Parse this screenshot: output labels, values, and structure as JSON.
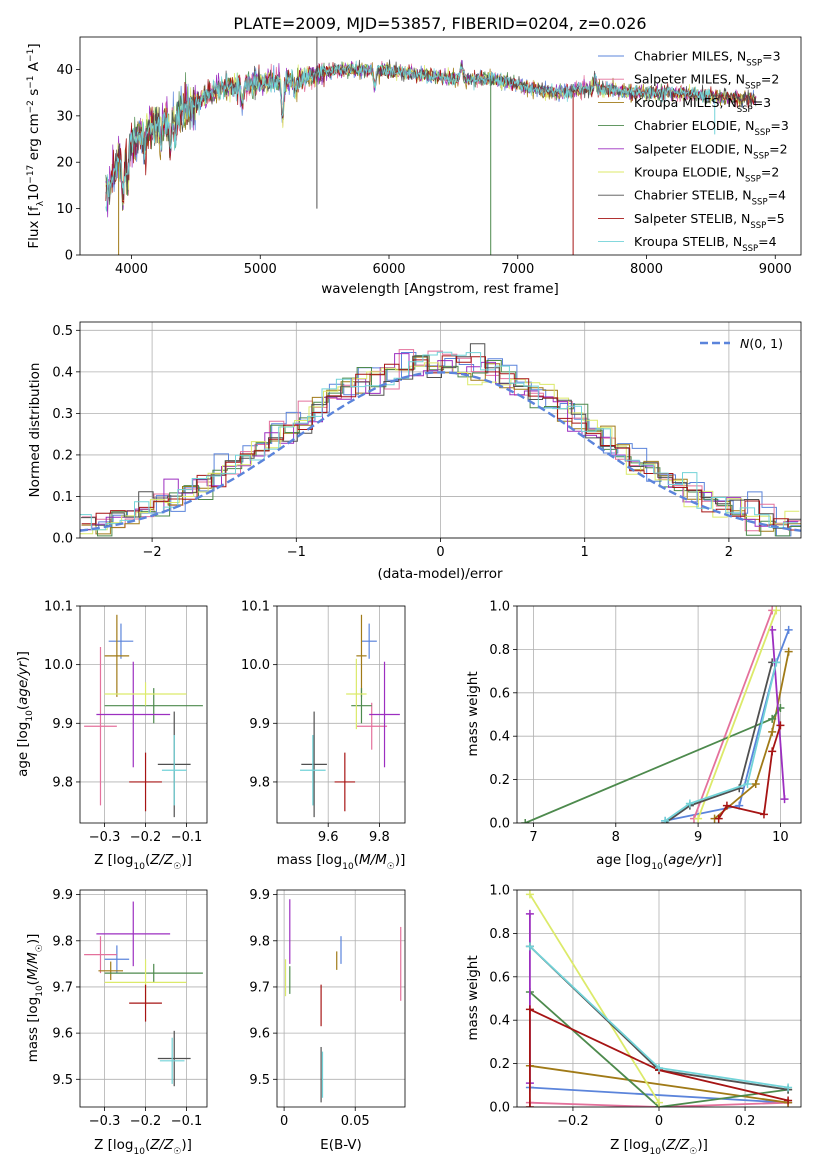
{
  "title": "PLATE=2009, MJD=53857, FIBERID=0204, z=0.026",
  "colors": {
    "chabrier_miles": "#5b84db",
    "salpeter_miles": "#e4719c",
    "kroupa_miles": "#a07a17",
    "chabrier_elodie": "#4d8a4d",
    "salpeter_elodie": "#9c2fc0",
    "kroupa_elodie": "#dcea6a",
    "chabrier_stelib": "#505050",
    "salpeter_stelib": "#a61414",
    "kroupa_stelib": "#72d3d8",
    "gauss": "#5b84db"
  },
  "chart_data": [
    {
      "type": "line",
      "panel": "spectrum",
      "xlabel": "wavelength [Angstrom, rest frame]",
      "ylabel": "Flux [f_λ10^-17 erg cm^-2 s^-1 A^-1]",
      "xlim": [
        3600,
        9200
      ],
      "ylim": [
        0,
        47
      ],
      "xticks": [
        4000,
        5000,
        6000,
        7000,
        8000,
        9000
      ],
      "yticks": [
        0,
        10,
        20,
        30,
        40
      ],
      "grid": false,
      "legend_position": "upper right",
      "legend": [
        "Chabrier MILES, NSSP=3",
        "Salpeter MILES, NSSP=2",
        "Kroupa MILES, NSSP=3",
        "Chabrier ELODIE, NSSP=3",
        "Salpeter ELODIE, NSSP=2",
        "Kroupa ELODIE, NSSP=2",
        "Chabrier STELIB, NSSP=4",
        "Salpeter STELIB, NSSP=5",
        "Kroupa STELIB, NSSP=4"
      ],
      "continuum": [
        [
          3800,
          13
        ],
        [
          3900,
          20
        ],
        [
          4000,
          24
        ],
        [
          4100,
          27
        ],
        [
          4300,
          29
        ],
        [
          4500,
          33
        ],
        [
          4700,
          36
        ],
        [
          5000,
          37
        ],
        [
          5300,
          38
        ],
        [
          5600,
          40
        ],
        [
          5900,
          40
        ],
        [
          6200,
          39
        ],
        [
          6500,
          38
        ],
        [
          6800,
          38
        ],
        [
          7100,
          36
        ],
        [
          7300,
          35
        ],
        [
          7600,
          36
        ],
        [
          7900,
          35
        ],
        [
          8200,
          35
        ],
        [
          8600,
          34
        ],
        [
          8900,
          33.5
        ]
      ],
      "spikes": [
        {
          "x": 3900,
          "y": 0,
          "series": 2
        },
        {
          "x": 5440,
          "y": 47,
          "series": 6
        },
        {
          "x": 5440,
          "y": 10,
          "series": 6
        },
        {
          "x": 6790,
          "y": 0,
          "series": 3
        },
        {
          "x": 7430,
          "y": 0,
          "series": 7
        },
        {
          "x": 8530,
          "y": 26,
          "series": 8
        }
      ]
    },
    {
      "type": "histogram",
      "panel": "residuals",
      "xlabel": "(data-model)/error",
      "ylabel": "Normed distribution",
      "xlim": [
        -2.5,
        2.5
      ],
      "ylim": [
        0,
        0.52
      ],
      "xticks": [
        -2,
        -1,
        0,
        1,
        2
      ],
      "yticks": [
        0,
        0.1,
        0.2,
        0.3,
        0.4,
        0.5
      ],
      "grid": true,
      "legend": [
        "N(0,1)"
      ],
      "legend_position": "upper right",
      "bin_width": 0.1
    },
    {
      "type": "scatter",
      "panel": "age_vs_Z",
      "xlabel": "Z [log10(Z/Z☉)]",
      "ylabel": "age  [log10(age/yr)]",
      "xlim": [
        -0.36,
        -0.05
      ],
      "ylim": [
        9.73,
        10.1
      ],
      "xticks": [
        -0.3,
        -0.2,
        -0.1
      ],
      "yticks": [
        9.8,
        9.9,
        10.0,
        10.1
      ],
      "grid": true,
      "points": [
        {
          "s": 0,
          "x": -0.26,
          "y": 10.04,
          "xe": 0.03,
          "ye": 0.03
        },
        {
          "s": 1,
          "x": -0.31,
          "y": 9.895,
          "xe": 0.04,
          "ye": 0.135
        },
        {
          "s": 2,
          "x": -0.27,
          "y": 10.015,
          "xe": 0.03,
          "ye": 0.07
        },
        {
          "s": 3,
          "x": -0.18,
          "y": 9.93,
          "xe": 0.12,
          "ye": 0.03
        },
        {
          "s": 4,
          "x": -0.23,
          "y": 9.915,
          "xe": 0.09,
          "ye": 0.09
        },
        {
          "s": 5,
          "x": -0.2,
          "y": 9.95,
          "xe": 0.1,
          "ye": 0.02
        },
        {
          "s": 6,
          "x": -0.13,
          "y": 9.83,
          "xe": 0.04,
          "ye": 0.09
        },
        {
          "s": 7,
          "x": -0.2,
          "y": 9.8,
          "xe": 0.04,
          "ye": 0.05
        },
        {
          "s": 8,
          "x": -0.13,
          "y": 9.82,
          "xe": 0.03,
          "ye": 0.06
        }
      ]
    },
    {
      "type": "scatter",
      "panel": "age_vs_mass",
      "xlabel": "mass [log10(M/M☉)]",
      "ylabel": "",
      "xlim": [
        9.4,
        9.9
      ],
      "ylim": [
        9.73,
        10.1
      ],
      "xticks": [
        9.6,
        9.8
      ],
      "yticks": [
        9.8,
        9.9,
        10.0,
        10.1
      ],
      "grid": true,
      "points": [
        {
          "s": 0,
          "x": 9.76,
          "y": 10.04,
          "xe": 0.03,
          "ye": 0.03
        },
        {
          "s": 1,
          "x": 9.77,
          "y": 9.895,
          "xe": 0.06,
          "ye": 0.04
        },
        {
          "s": 2,
          "x": 9.73,
          "y": 10.015,
          "xe": 0.02,
          "ye": 0.07
        },
        {
          "s": 3,
          "x": 9.73,
          "y": 9.93,
          "xe": 0.04,
          "ye": 0.03
        },
        {
          "s": 4,
          "x": 9.82,
          "y": 9.915,
          "xe": 0.06,
          "ye": 0.09
        },
        {
          "s": 5,
          "x": 9.71,
          "y": 9.95,
          "xe": 0.04,
          "ye": 0.06
        },
        {
          "s": 6,
          "x": 9.545,
          "y": 9.83,
          "xe": 0.05,
          "ye": 0.09
        },
        {
          "s": 7,
          "x": 9.665,
          "y": 9.8,
          "xe": 0.04,
          "ye": 0.05
        },
        {
          "s": 8,
          "x": 9.54,
          "y": 9.82,
          "xe": 0.05,
          "ye": 0.06
        }
      ]
    },
    {
      "type": "line",
      "panel": "massweight_vs_age",
      "xlabel": "age  [log10(age/yr)]",
      "ylabel": "mass weight",
      "xlim": [
        6.8,
        10.25
      ],
      "ylim": [
        0,
        1
      ],
      "xticks": [
        7,
        8,
        9,
        10
      ],
      "yticks": [
        0,
        0.2,
        0.4,
        0.6,
        0.8,
        1.0
      ],
      "grid": true,
      "series": [
        {
          "s": 0,
          "x": [
            8.6,
            9.5,
            9.95,
            10.1
          ],
          "y": [
            0.01,
            0.08,
            0.74,
            0.89
          ]
        },
        {
          "s": 1,
          "x": [
            8.95,
            9.9
          ],
          "y": [
            0.02,
            0.98
          ]
        },
        {
          "s": 2,
          "x": [
            9.2,
            9.7,
            9.9,
            10.1
          ],
          "y": [
            0.02,
            0.18,
            0.42,
            0.79
          ]
        },
        {
          "s": 3,
          "x": [
            6.9,
            9.9,
            10.0
          ],
          "y": [
            0.0,
            0.48,
            0.53
          ]
        },
        {
          "s": 4,
          "x": [
            9.9,
            10.05
          ],
          "y": [
            0.89,
            0.11
          ]
        },
        {
          "s": 5,
          "x": [
            9.0,
            9.95
          ],
          "y": [
            0.02,
            0.98
          ]
        },
        {
          "s": 6,
          "x": [
            8.6,
            8.9,
            9.5,
            9.9
          ],
          "y": [
            0.0,
            0.08,
            0.16,
            0.74
          ]
        },
        {
          "s": 7,
          "x": [
            9.25,
            9.35,
            9.8,
            9.9,
            10.0
          ],
          "y": [
            0.02,
            0.08,
            0.04,
            0.33,
            0.45
          ]
        },
        {
          "s": 8,
          "x": [
            8.6,
            8.9,
            9.6,
            9.95
          ],
          "y": [
            0.01,
            0.09,
            0.18,
            0.74
          ]
        }
      ]
    },
    {
      "type": "scatter",
      "panel": "mass_vs_Z",
      "xlabel": "Z [log10(Z/Z☉)]",
      "ylabel": "mass [log10(M/M☉)]",
      "xlim": [
        -0.36,
        -0.05
      ],
      "ylim": [
        9.44,
        9.91
      ],
      "xticks": [
        -0.3,
        -0.2,
        -0.1
      ],
      "yticks": [
        9.5,
        9.6,
        9.7,
        9.8,
        9.9
      ],
      "grid": true,
      "points": [
        {
          "s": 0,
          "x": -0.27,
          "y": 9.76,
          "xe": 0.03,
          "ye": 0.03
        },
        {
          "s": 1,
          "x": -0.31,
          "y": 9.77,
          "xe": 0.04,
          "ye": 0.04
        },
        {
          "s": 2,
          "x": -0.285,
          "y": 9.735,
          "xe": 0.03,
          "ye": 0.02
        },
        {
          "s": 3,
          "x": -0.18,
          "y": 9.73,
          "xe": 0.12,
          "ye": 0.02
        },
        {
          "s": 4,
          "x": -0.23,
          "y": 9.815,
          "xe": 0.09,
          "ye": 0.07
        },
        {
          "s": 5,
          "x": -0.2,
          "y": 9.71,
          "xe": 0.1,
          "ye": 0.05
        },
        {
          "s": 6,
          "x": -0.13,
          "y": 9.545,
          "xe": 0.04,
          "ye": 0.06
        },
        {
          "s": 7,
          "x": -0.2,
          "y": 9.665,
          "xe": 0.04,
          "ye": 0.04
        },
        {
          "s": 8,
          "x": -0.135,
          "y": 9.54,
          "xe": 0.03,
          "ye": 0.05
        }
      ]
    },
    {
      "type": "scatter",
      "panel": "mass_vs_ebv",
      "xlabel": "E(B-V)",
      "ylabel": "",
      "xlim": [
        -0.005,
        0.085
      ],
      "ylim": [
        9.44,
        9.91
      ],
      "xticks": [
        0.0,
        0.05
      ],
      "yticks": [
        9.5,
        9.6,
        9.7,
        9.8,
        9.9
      ],
      "grid": true,
      "points": [
        {
          "s": 0,
          "x": 0.04,
          "y": 9.78,
          "xe": 0,
          "ye": 0.03
        },
        {
          "s": 1,
          "x": 0.082,
          "y": 9.75,
          "xe": 0,
          "ye": 0.08
        },
        {
          "s": 2,
          "x": 0.037,
          "y": 9.757,
          "xe": 0,
          "ye": 0.02
        },
        {
          "s": 3,
          "x": 0.004,
          "y": 9.715,
          "xe": 0,
          "ye": 0.03
        },
        {
          "s": 4,
          "x": 0.004,
          "y": 9.82,
          "xe": 0,
          "ye": 0.07
        },
        {
          "s": 5,
          "x": 0.001,
          "y": 9.72,
          "xe": 0,
          "ye": 0.04
        },
        {
          "s": 6,
          "x": 0.026,
          "y": 9.51,
          "xe": 0,
          "ye": 0.06
        },
        {
          "s": 7,
          "x": 0.026,
          "y": 9.66,
          "xe": 0,
          "ye": 0.045
        },
        {
          "s": 8,
          "x": 0.027,
          "y": 9.51,
          "xe": 0,
          "ye": 0.05
        }
      ]
    },
    {
      "type": "line",
      "panel": "massweight_vs_Z",
      "xlabel": "Z [log10(Z/Z☉)]",
      "ylabel": "mass weight",
      "xlim": [
        -0.33,
        0.33
      ],
      "ylim": [
        0,
        1
      ],
      "xticks": [
        -0.2,
        0.0,
        0.2
      ],
      "yticks": [
        0,
        0.2,
        0.4,
        0.6,
        0.8,
        1.0
      ],
      "grid": true,
      "series": [
        {
          "s": 0,
          "x": [
            -0.3,
            0.3
          ],
          "y": [
            0.09,
            0.02
          ]
        },
        {
          "s": 1,
          "x": [
            -0.3,
            0.0,
            0.3
          ],
          "y": [
            0.02,
            0.0,
            0.02
          ]
        },
        {
          "s": 2,
          "x": [
            -0.3,
            0.3
          ],
          "y": [
            0.19,
            0.02
          ]
        },
        {
          "s": 3,
          "x": [
            -0.3,
            0.0,
            0.3
          ],
          "y": [
            0.53,
            0.0,
            0.08
          ]
        },
        {
          "s": 4,
          "x": [
            -0.3,
            -0.3
          ],
          "y": [
            0.11,
            0.89
          ]
        },
        {
          "s": 5,
          "x": [
            -0.3,
            0.0
          ],
          "y": [
            0.98,
            0.02
          ]
        },
        {
          "s": 6,
          "x": [
            -0.3,
            0.0,
            0.3
          ],
          "y": [
            0.74,
            0.17,
            0.08
          ]
        },
        {
          "s": 7,
          "x": [
            -0.3,
            -0.3,
            0.0,
            0.3
          ],
          "y": [
            0.0,
            0.45,
            0.17,
            0.03
          ]
        },
        {
          "s": 8,
          "x": [
            -0.3,
            0.0,
            0.3
          ],
          "y": [
            0.74,
            0.18,
            0.09
          ]
        }
      ]
    }
  ]
}
